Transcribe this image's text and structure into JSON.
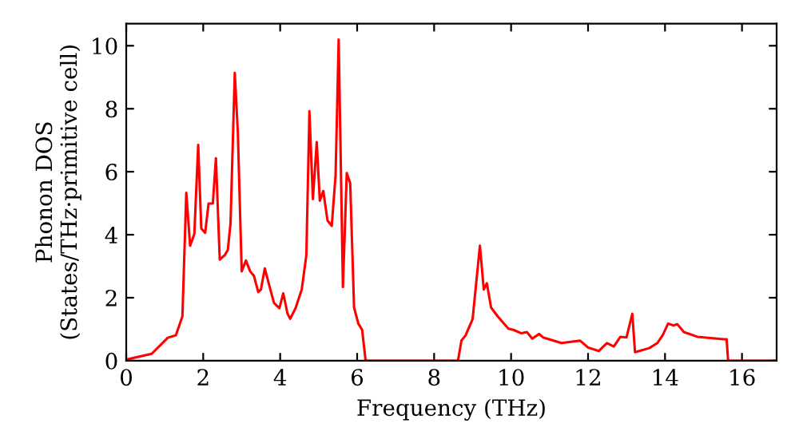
{
  "chart_data": {
    "type": "line",
    "xlabel": "Frequency (THz)",
    "ylabel": "Phonon DOS\n(States/THz·primitive cell)",
    "x": [
      0,
      0.04,
      0.66,
      1.08,
      1.29,
      1.46,
      1.56,
      1.66,
      1.77,
      1.87,
      1.95,
      2.05,
      2.14,
      2.25,
      2.33,
      2.43,
      2.56,
      2.64,
      2.71,
      2.82,
      2.9,
      3.0,
      3.11,
      3.22,
      3.32,
      3.43,
      3.5,
      3.6,
      3.71,
      3.84,
      3.98,
      4.08,
      4.19,
      4.26,
      4.4,
      4.56,
      4.68,
      4.76,
      4.85,
      4.95,
      5.03,
      5.12,
      5.23,
      5.34,
      5.44,
      5.52,
      5.63,
      5.73,
      5.82,
      5.92,
      6.03,
      6.13,
      6.22,
      8.62,
      8.71,
      8.82,
      9.0,
      9.19,
      9.29,
      9.37,
      9.48,
      9.65,
      9.93,
      10.06,
      10.27,
      10.41,
      10.55,
      10.73,
      10.83,
      11.31,
      11.79,
      12.0,
      12.28,
      12.49,
      12.67,
      12.84,
      13.0,
      13.15,
      13.22,
      13.59,
      13.8,
      13.94,
      14.08,
      14.22,
      14.32,
      14.49,
      14.84,
      15.53,
      15.6,
      15.64,
      16.9
    ],
    "series": [
      {
        "color": "#ff0000",
        "values": [
          0,
          0.05,
          0.22,
          0.73,
          0.81,
          1.41,
          5.33,
          3.65,
          4.03,
          6.85,
          4.2,
          4.06,
          4.99,
          4.99,
          6.43,
          3.21,
          3.35,
          3.52,
          4.37,
          9.14,
          7.25,
          2.84,
          3.18,
          2.84,
          2.69,
          2.18,
          2.26,
          2.93,
          2.42,
          1.83,
          1.67,
          2.14,
          1.5,
          1.33,
          1.67,
          2.26,
          3.35,
          7.92,
          5.13,
          6.94,
          5.08,
          5.39,
          4.45,
          4.28,
          5.89,
          10.2,
          2.34,
          5.96,
          5.63,
          1.69,
          1.18,
          0.98,
          0,
          0,
          0.64,
          0.81,
          1.32,
          3.65,
          2.26,
          2.46,
          1.69,
          1.41,
          1.02,
          0.98,
          0.87,
          0.91,
          0.7,
          0.85,
          0.74,
          0.56,
          0.64,
          0.42,
          0.31,
          0.56,
          0.45,
          0.76,
          0.74,
          1.49,
          0.27,
          0.4,
          0.56,
          0.81,
          1.18,
          1.12,
          1.16,
          0.91,
          0.76,
          0.68,
          0.68,
          0,
          0
        ]
      }
    ],
    "xlim": [
      0,
      16.9
    ],
    "ylim": [
      0,
      10.7
    ],
    "xticks": [
      0,
      2,
      4,
      6,
      8,
      10,
      12,
      14,
      16
    ],
    "yticks": [
      0,
      2,
      4,
      6,
      8,
      10
    ],
    "grid": false,
    "legend": false,
    "marker": "none",
    "line_style": "solid"
  }
}
